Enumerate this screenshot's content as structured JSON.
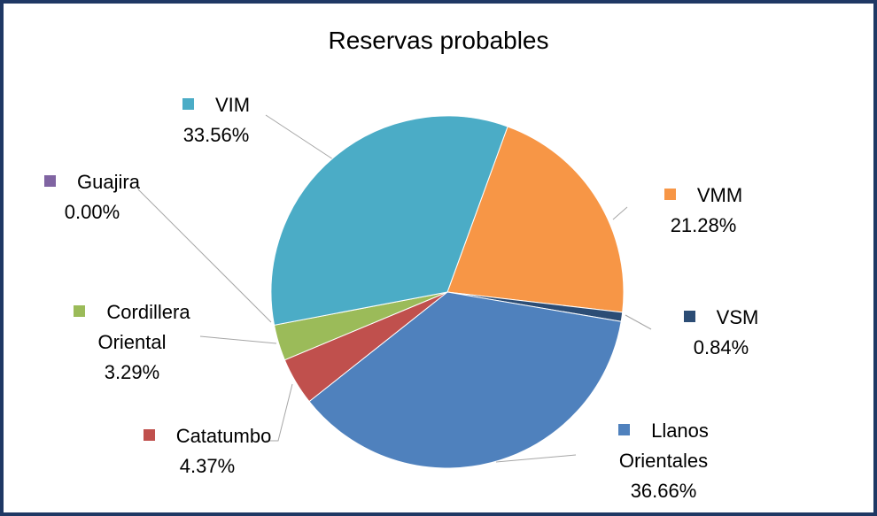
{
  "chart_data": {
    "type": "pie",
    "title": "Reservas probables",
    "categories": [
      "VMM",
      "VSM",
      "Llanos Orientales",
      "Catatumbo",
      "Cordillera Oriental",
      "Guajira",
      "VIM"
    ],
    "values": [
      21.28,
      0.84,
      36.66,
      4.37,
      3.29,
      0.0,
      33.56
    ],
    "value_labels": [
      "21.28%",
      "0.84%",
      "36.66%",
      "4.37%",
      "3.29%",
      "0.00%",
      "33.56%"
    ],
    "colors": [
      "#f79646",
      "#2c4d75",
      "#4f81bd",
      "#c0504d",
      "#9bbb59",
      "#8064a2",
      "#4bacc6"
    ]
  }
}
